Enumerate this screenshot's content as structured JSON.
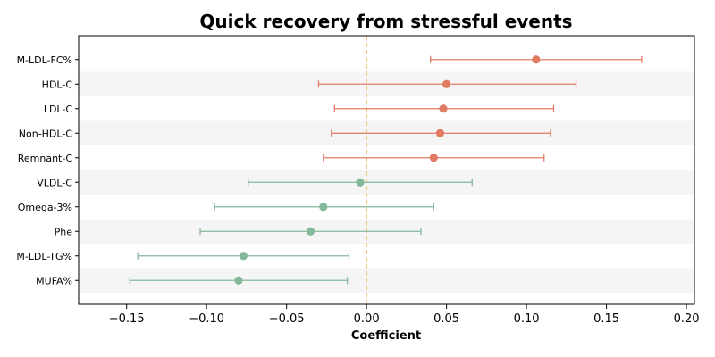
{
  "chart_data": {
    "type": "forest",
    "title": "Quick recovery from stressful events",
    "xlabel": "Coefficient",
    "ylabel": "",
    "xlim": [
      -0.18,
      0.205
    ],
    "xticks": [
      -0.15,
      -0.1,
      -0.05,
      0.0,
      0.05,
      0.1,
      0.15,
      0.2
    ],
    "xtick_labels": [
      "−0.15",
      "−0.10",
      "−0.05",
      "0.00",
      "0.05",
      "0.10",
      "0.15",
      "0.20"
    ],
    "reference_line": 0,
    "colors": {
      "positive": "#e07b63",
      "negative": "#84b89b",
      "reference": "#f5c27a",
      "band": "#f5f5f5"
    },
    "rows": [
      {
        "label": "M-LDL-FC%",
        "estimate": 0.106,
        "lower": 0.04,
        "upper": 0.172
      },
      {
        "label": "HDL-C",
        "estimate": 0.05,
        "lower": -0.03,
        "upper": 0.131
      },
      {
        "label": "LDL-C",
        "estimate": 0.048,
        "lower": -0.02,
        "upper": 0.117
      },
      {
        "label": "Non-HDL-C",
        "estimate": 0.046,
        "lower": -0.022,
        "upper": 0.115
      },
      {
        "label": "Remnant-C",
        "estimate": 0.042,
        "lower": -0.027,
        "upper": 0.111
      },
      {
        "label": "VLDL-C",
        "estimate": -0.004,
        "lower": -0.074,
        "upper": 0.066
      },
      {
        "label": "Omega-3%",
        "estimate": -0.027,
        "lower": -0.095,
        "upper": 0.042
      },
      {
        "label": "Phe",
        "estimate": -0.035,
        "lower": -0.104,
        "upper": 0.034
      },
      {
        "label": "M-LDL-TG%",
        "estimate": -0.077,
        "lower": -0.143,
        "upper": -0.011
      },
      {
        "label": "MUFA%",
        "estimate": -0.08,
        "lower": -0.148,
        "upper": -0.012
      }
    ]
  }
}
